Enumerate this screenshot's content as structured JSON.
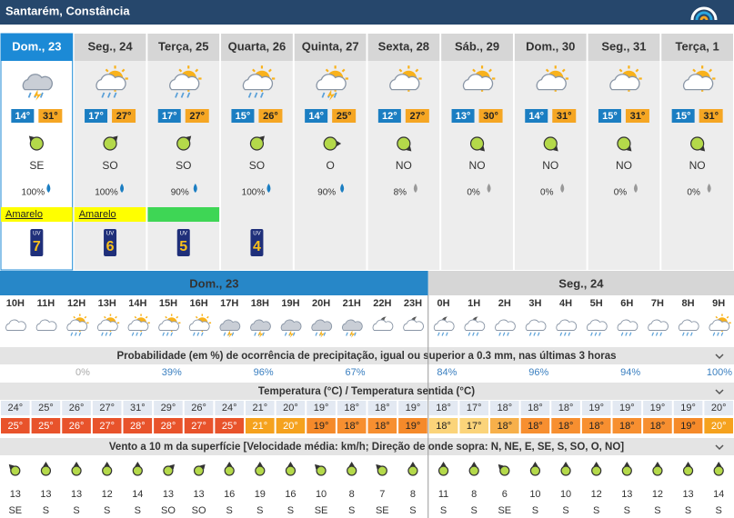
{
  "header": {
    "title": "Santarém, Constância"
  },
  "days": [
    {
      "label": "Dom., 23",
      "min": "14°",
      "max": "31°",
      "wind": "SE",
      "precip": "100%",
      "warning": "Amarelo",
      "warning_color": "#ffff00",
      "uv": "7"
    },
    {
      "label": "Seg., 24",
      "min": "17°",
      "max": "27°",
      "wind": "SO",
      "precip": "100%",
      "warning": "Amarelo",
      "warning_color": "#ffff00",
      "uv": "6"
    },
    {
      "label": "Terça, 25",
      "min": "17°",
      "max": "27°",
      "wind": "SO",
      "precip": "90%",
      "warning": null,
      "warning_color": "#3ed655",
      "uv": "5"
    },
    {
      "label": "Quarta, 26",
      "min": "15°",
      "max": "26°",
      "wind": "SO",
      "precip": "100%",
      "warning": null,
      "warning_color": null,
      "uv": "4"
    },
    {
      "label": "Quinta, 27",
      "min": "14°",
      "max": "25°",
      "wind": "O",
      "precip": "90%",
      "warning": null,
      "warning_color": null,
      "uv": null
    },
    {
      "label": "Sexta, 28",
      "min": "12°",
      "max": "27°",
      "wind": "NO",
      "precip": "8%",
      "warning": null,
      "warning_color": null,
      "uv": null
    },
    {
      "label": "Sáb., 29",
      "min": "13°",
      "max": "30°",
      "wind": "NO",
      "precip": "0%",
      "warning": null,
      "warning_color": null,
      "uv": null
    },
    {
      "label": "Dom., 30",
      "min": "14°",
      "max": "31°",
      "wind": "NO",
      "precip": "0%",
      "warning": null,
      "warning_color": null,
      "uv": null
    },
    {
      "label": "Seg., 31",
      "min": "15°",
      "max": "31°",
      "wind": "NO",
      "precip": "0%",
      "warning": null,
      "warning_color": null,
      "uv": null
    },
    {
      "label": "Terça, 1",
      "min": "15°",
      "max": "31°",
      "wind": "NO",
      "precip": "0%",
      "warning": null,
      "warning_color": null,
      "uv": null
    }
  ],
  "hourly": {
    "day_headers": [
      "Dom., 23",
      "Seg., 24"
    ],
    "hours": [
      "10H",
      "11H",
      "12H",
      "13H",
      "14H",
      "15H",
      "16H",
      "17H",
      "18H",
      "19H",
      "20H",
      "21H",
      "22H",
      "23H",
      "0H",
      "1H",
      "2H",
      "3H",
      "4H",
      "5H",
      "6H",
      "7H",
      "8H",
      "9H"
    ],
    "precip_title": "Probabilidade (em %) de ocorrência de precipitação, igual ou superior a 0.3 mm, nas últimas 3 horas",
    "precip": [
      null,
      null,
      "0%",
      null,
      null,
      "39%",
      null,
      null,
      "96%",
      null,
      null,
      "67%",
      null,
      null,
      "84%",
      null,
      null,
      "96%",
      null,
      null,
      "94%",
      null,
      null,
      "100%"
    ],
    "temp_title": "Temperatura (°C) / Temperatura sentida (°C)",
    "temp": [
      "24°",
      "25°",
      "26°",
      "27°",
      "31°",
      "29°",
      "26°",
      "24°",
      "21°",
      "20°",
      "19°",
      "18°",
      "18°",
      "19°",
      "18°",
      "17°",
      "18°",
      "18°",
      "18°",
      "19°",
      "19°",
      "19°",
      "19°",
      "20°"
    ],
    "feels": [
      "25°",
      "25°",
      "26°",
      "27°",
      "28°",
      "28°",
      "27°",
      "25°",
      "21°",
      "20°",
      "19°",
      "18°",
      "18°",
      "19°",
      "18°",
      "17°",
      "18°",
      "18°",
      "18°",
      "18°",
      "18°",
      "18°",
      "19°",
      "20°"
    ],
    "wind_title": "Vento a 10 m da superfície [Velocidade média: km/h; Direção de onde sopra: N, NE, E, SE, S, SO, O, NO]",
    "wind_speed": [
      "13",
      "13",
      "13",
      "12",
      "14",
      "13",
      "13",
      "16",
      "19",
      "16",
      "10",
      "8",
      "7",
      "8",
      "11",
      "8",
      "6",
      "10",
      "10",
      "12",
      "13",
      "12",
      "13",
      "14"
    ],
    "wind_dir": [
      "SE",
      "S",
      "S",
      "S",
      "S",
      "SO",
      "SO",
      "S",
      "S",
      "S",
      "SE",
      "S",
      "SE",
      "S",
      "S",
      "S",
      "SE",
      "S",
      "S",
      "S",
      "S",
      "S",
      "S",
      "S"
    ]
  }
}
